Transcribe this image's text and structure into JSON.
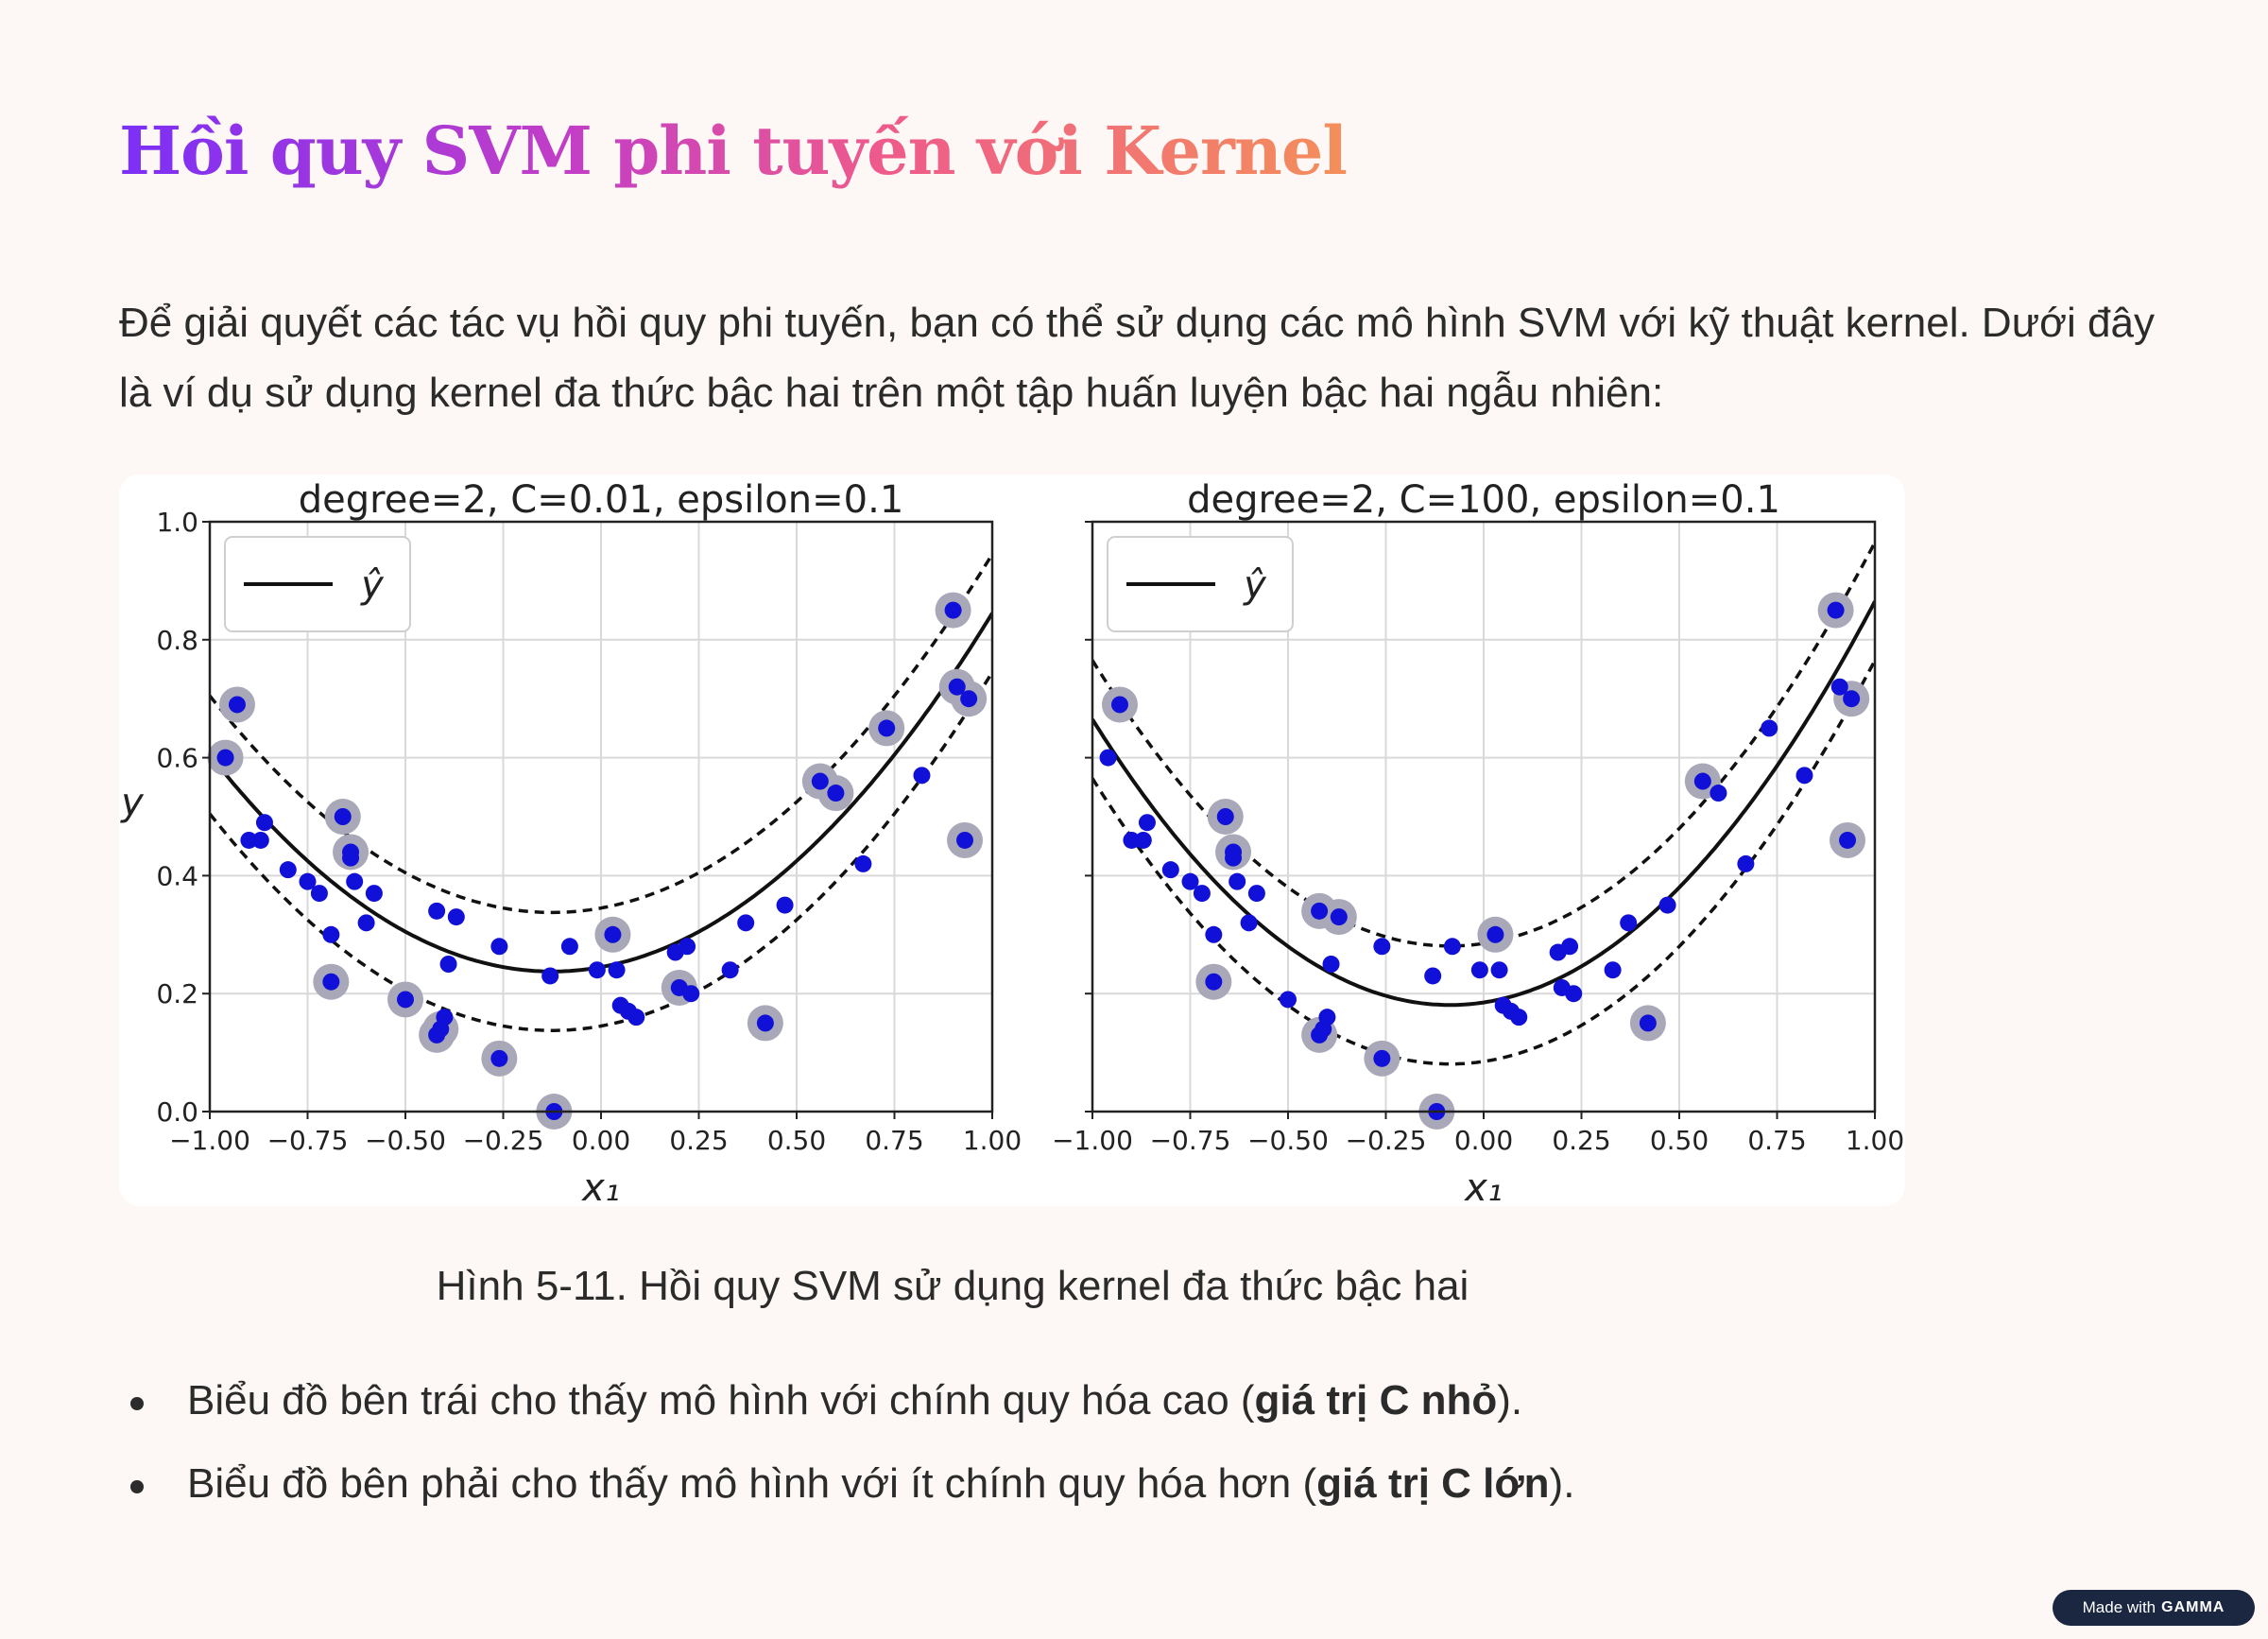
{
  "title": "Hồi quy SVM phi tuyến với Kernel",
  "intro": "Để giải quyết các tác vụ hồi quy phi tuyến, bạn có thể sử dụng các mô hình SVM với kỹ thuật kernel. Dưới đây là ví dụ sử dụng kernel đa thức bậc hai trên một tập huấn luyện bậc hai ngẫu nhiên:",
  "caption": "Hình 5-11. Hồi quy SVM sử dụng kernel đa thức bậc hai",
  "bullets": [
    {
      "text": "Biểu đồ bên trái cho thấy mô hình với chính quy hóa cao (",
      "bold": "giá trị C nhỏ",
      "end": ")."
    },
    {
      "text": "Biểu đồ bên phải cho thấy mô hình với ít chính quy hóa hơn (",
      "bold": "giá trị C lớn",
      "end": ")."
    }
  ],
  "badge": {
    "prefix": "Made with",
    "brand": "GAMMA"
  },
  "chart_data": [
    {
      "type": "scatter",
      "title": "degree=2, C=0.01, epsilon=0.1",
      "xlabel": "x₁",
      "ylabel": "y",
      "xlim": [
        -1.0,
        1.0
      ],
      "ylim": [
        0.0,
        1.0
      ],
      "xticks": [
        "−1.00",
        "−0.75",
        "−0.50",
        "−0.25",
        "0.00",
        "0.25",
        "0.50",
        "0.75",
        "1.00"
      ],
      "yticks": [
        "0.0",
        "0.2",
        "0.4",
        "0.6",
        "0.8",
        "1.0"
      ],
      "grid": true,
      "legend": "top-left",
      "legend_label": "ŷ",
      "curve": {
        "a": 0.48,
        "b": 0.12,
        "c": 0.245
      },
      "epsilon": 0.1,
      "points": [
        [
          -0.96,
          0.6
        ],
        [
          -0.93,
          0.69
        ],
        [
          -0.9,
          0.46
        ],
        [
          -0.87,
          0.46
        ],
        [
          -0.86,
          0.49
        ],
        [
          -0.8,
          0.41
        ],
        [
          -0.75,
          0.39
        ],
        [
          -0.72,
          0.37
        ],
        [
          -0.69,
          0.3
        ],
        [
          -0.69,
          0.22
        ],
        [
          -0.66,
          0.5
        ],
        [
          -0.64,
          0.44
        ],
        [
          -0.64,
          0.43
        ],
        [
          -0.63,
          0.39
        ],
        [
          -0.6,
          0.32
        ],
        [
          -0.58,
          0.37
        ],
        [
          -0.5,
          0.19
        ],
        [
          -0.42,
          0.13
        ],
        [
          -0.42,
          0.34
        ],
        [
          -0.41,
          0.14
        ],
        [
          -0.4,
          0.16
        ],
        [
          -0.39,
          0.25
        ],
        [
          -0.37,
          0.33
        ],
        [
          -0.26,
          0.09
        ],
        [
          -0.26,
          0.28
        ],
        [
          -0.13,
          0.23
        ],
        [
          -0.12,
          0.0
        ],
        [
          -0.08,
          0.28
        ],
        [
          -0.01,
          0.24
        ],
        [
          0.03,
          0.3
        ],
        [
          0.04,
          0.24
        ],
        [
          0.05,
          0.18
        ],
        [
          0.07,
          0.17
        ],
        [
          0.09,
          0.16
        ],
        [
          0.19,
          0.27
        ],
        [
          0.2,
          0.21
        ],
        [
          0.22,
          0.28
        ],
        [
          0.23,
          0.2
        ],
        [
          0.33,
          0.24
        ],
        [
          0.37,
          0.32
        ],
        [
          0.42,
          0.15
        ],
        [
          0.47,
          0.35
        ],
        [
          0.56,
          0.56
        ],
        [
          0.6,
          0.54
        ],
        [
          0.67,
          0.42
        ],
        [
          0.73,
          0.65
        ],
        [
          0.82,
          0.57
        ],
        [
          0.9,
          0.85
        ],
        [
          0.91,
          0.72
        ],
        [
          0.93,
          0.46
        ],
        [
          0.94,
          0.7
        ]
      ],
      "support_vectors": [
        0,
        1,
        9,
        10,
        11,
        16,
        17,
        19,
        23,
        26,
        29,
        35,
        40,
        42,
        43,
        45,
        47,
        48,
        49,
        50
      ]
    },
    {
      "type": "scatter",
      "title": "degree=2, C=100, epsilon=0.1",
      "xlabel": "x₁",
      "ylabel": "",
      "xlim": [
        -1.0,
        1.0
      ],
      "ylim": [
        0.0,
        1.0
      ],
      "xticks": [
        "−1.00",
        "−0.75",
        "−0.50",
        "−0.25",
        "0.00",
        "0.25",
        "0.50",
        "0.75",
        "1.00"
      ],
      "yticks": [
        "0.0",
        "0.2",
        "0.4",
        "0.6",
        "0.8",
        "1.0"
      ],
      "grid": true,
      "legend": "top-left",
      "legend_label": "ŷ",
      "curve": {
        "a": 0.58,
        "b": 0.1,
        "c": 0.185
      },
      "epsilon": 0.1,
      "points": [
        [
          -0.96,
          0.6
        ],
        [
          -0.93,
          0.69
        ],
        [
          -0.9,
          0.46
        ],
        [
          -0.87,
          0.46
        ],
        [
          -0.86,
          0.49
        ],
        [
          -0.8,
          0.41
        ],
        [
          -0.75,
          0.39
        ],
        [
          -0.72,
          0.37
        ],
        [
          -0.69,
          0.3
        ],
        [
          -0.69,
          0.22
        ],
        [
          -0.66,
          0.5
        ],
        [
          -0.64,
          0.44
        ],
        [
          -0.64,
          0.43
        ],
        [
          -0.63,
          0.39
        ],
        [
          -0.6,
          0.32
        ],
        [
          -0.58,
          0.37
        ],
        [
          -0.5,
          0.19
        ],
        [
          -0.42,
          0.13
        ],
        [
          -0.42,
          0.34
        ],
        [
          -0.41,
          0.14
        ],
        [
          -0.4,
          0.16
        ],
        [
          -0.39,
          0.25
        ],
        [
          -0.37,
          0.33
        ],
        [
          -0.26,
          0.09
        ],
        [
          -0.26,
          0.28
        ],
        [
          -0.13,
          0.23
        ],
        [
          -0.12,
          0.0
        ],
        [
          -0.08,
          0.28
        ],
        [
          -0.01,
          0.24
        ],
        [
          0.03,
          0.3
        ],
        [
          0.04,
          0.24
        ],
        [
          0.05,
          0.18
        ],
        [
          0.07,
          0.17
        ],
        [
          0.09,
          0.16
        ],
        [
          0.19,
          0.27
        ],
        [
          0.2,
          0.21
        ],
        [
          0.22,
          0.28
        ],
        [
          0.23,
          0.2
        ],
        [
          0.33,
          0.24
        ],
        [
          0.37,
          0.32
        ],
        [
          0.42,
          0.15
        ],
        [
          0.47,
          0.35
        ],
        [
          0.56,
          0.56
        ],
        [
          0.6,
          0.54
        ],
        [
          0.67,
          0.42
        ],
        [
          0.73,
          0.65
        ],
        [
          0.82,
          0.57
        ],
        [
          0.9,
          0.85
        ],
        [
          0.91,
          0.72
        ],
        [
          0.93,
          0.46
        ],
        [
          0.94,
          0.7
        ]
      ],
      "support_vectors": [
        1,
        9,
        10,
        11,
        17,
        18,
        22,
        23,
        26,
        29,
        40,
        42,
        47,
        49,
        50
      ]
    }
  ]
}
